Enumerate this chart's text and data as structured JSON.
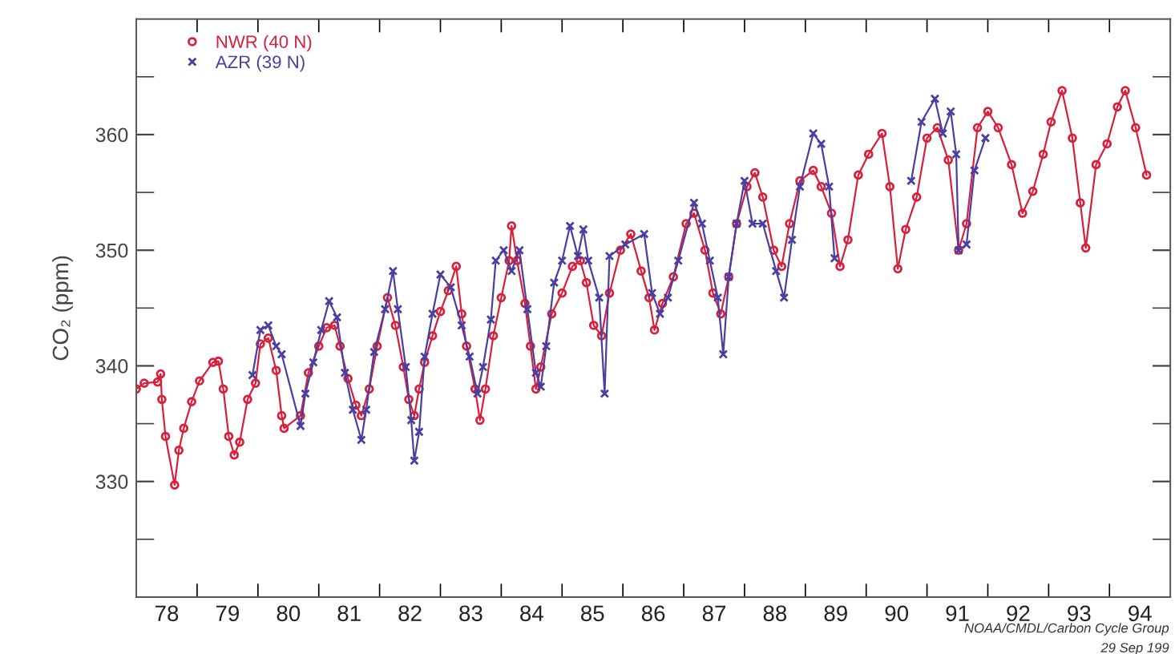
{
  "chart_data": {
    "type": "line",
    "ylabel": "CO₂ (ppm)",
    "xlim": [
      77.5,
      94.5
    ],
    "ylim": [
      320,
      370
    ],
    "xticks": [
      78,
      79,
      80,
      81,
      82,
      83,
      84,
      85,
      86,
      87,
      88,
      89,
      90,
      91,
      92,
      93,
      94,
      {
        "value": 78.5,
        "label": null
      },
      {
        "value": 79.5,
        "label": null
      },
      {
        "value": 80.5,
        "label": null
      },
      {
        "value": 81.5,
        "label": null
      },
      {
        "value": 82.5,
        "label": null
      },
      {
        "value": 83.5,
        "label": null
      },
      {
        "value": 84.5,
        "label": null
      },
      {
        "value": 85.5,
        "label": null
      },
      {
        "value": 86.5,
        "label": null
      },
      {
        "value": 87.5,
        "label": null
      },
      {
        "value": 88.5,
        "label": null
      },
      {
        "value": 89.5,
        "label": null
      },
      {
        "value": 90.5,
        "label": null
      },
      {
        "value": 91.5,
        "label": null
      },
      {
        "value": 92.5,
        "label": null
      },
      {
        "value": 93.5,
        "label": null
      }
    ],
    "yticks": [
      {
        "value": 325,
        "label": null
      },
      330,
      {
        "value": 335,
        "label": null
      },
      340,
      {
        "value": 345,
        "label": null
      },
      350,
      {
        "value": 355,
        "label": null
      },
      360,
      {
        "value": 365,
        "label": null
      }
    ],
    "grid": false,
    "legend": "top left",
    "line_style": "solid",
    "annotations": [
      "NOAA/CMDL/Carbon Cycle Group",
      "29 Sep 199"
    ],
    "series": [
      {
        "name": "NWR (40 N)",
        "color": "#d6203c",
        "marker": "circle",
        "x": [
          77.5,
          77.63,
          77.85,
          77.9,
          77.92,
          77.98,
          78.13,
          78.2,
          78.28,
          78.41,
          78.54,
          78.76,
          78.85,
          78.93,
          79.02,
          79.11,
          79.2,
          79.33,
          79.46,
          79.54,
          79.67,
          79.8,
          79.89,
          79.93,
          80.2,
          80.33,
          80.5,
          80.63,
          80.76,
          80.85,
          80.98,
          81.11,
          81.2,
          81.33,
          81.46,
          81.63,
          81.76,
          81.89,
          81.98,
          82.07,
          82.15,
          82.24,
          82.37,
          82.5,
          82.63,
          82.76,
          82.85,
          82.93,
          83.07,
          83.15,
          83.24,
          83.37,
          83.5,
          83.63,
          83.67,
          83.76,
          83.89,
          83.98,
          84.07,
          84.15,
          84.33,
          84.5,
          84.67,
          84.8,
          84.9,
          85.02,
          85.15,
          85.28,
          85.46,
          85.63,
          85.8,
          85.93,
          86.02,
          86.15,
          86.33,
          86.54,
          86.67,
          86.85,
          86.98,
          87.11,
          87.24,
          87.37,
          87.54,
          87.67,
          87.8,
          87.98,
          88.11,
          88.24,
          88.41,
          88.63,
          88.76,
          88.93,
          89.07,
          89.2,
          89.37,
          89.54,
          89.76,
          89.89,
          90.02,
          90.15,
          90.33,
          90.5,
          90.67,
          90.85,
          91.02,
          91.15,
          91.33,
          91.5,
          91.67,
          91.89,
          92.07,
          92.24,
          92.41,
          92.54,
          92.72,
          92.89,
          93.02,
          93.11,
          93.28,
          93.46,
          93.63,
          93.76,
          93.93,
          94.11
        ],
        "values": [
          338.0,
          338.5,
          338.6,
          339.3,
          337.1,
          333.9,
          329.7,
          332.7,
          334.6,
          336.9,
          338.7,
          340.3,
          340.4,
          338.0,
          333.9,
          332.3,
          333.4,
          337.1,
          338.5,
          341.9,
          342.4,
          339.6,
          335.7,
          334.6,
          335.7,
          339.4,
          341.7,
          343.3,
          343.5,
          341.7,
          338.9,
          336.6,
          335.7,
          338.0,
          341.7,
          345.9,
          343.5,
          339.9,
          337.1,
          335.7,
          338.0,
          340.3,
          342.6,
          344.7,
          346.5,
          348.6,
          344.5,
          341.7,
          338.0,
          335.3,
          338.0,
          342.6,
          345.9,
          349.1,
          352.1,
          349.1,
          345.4,
          341.7,
          338.0,
          339.9,
          344.5,
          346.3,
          348.6,
          349.1,
          347.2,
          343.5,
          342.6,
          346.3,
          350.0,
          351.4,
          348.2,
          345.9,
          343.1,
          345.4,
          347.7,
          352.3,
          353.2,
          350.0,
          346.3,
          344.5,
          347.7,
          352.3,
          355.5,
          356.7,
          354.6,
          350.0,
          348.6,
          352.3,
          356.0,
          356.9,
          355.5,
          353.2,
          348.6,
          350.9,
          356.5,
          358.3,
          360.1,
          355.5,
          348.4,
          351.8,
          354.6,
          359.7,
          360.6,
          357.8,
          350.0,
          352.3,
          360.6,
          362.0,
          360.6,
          357.4,
          353.2,
          355.1,
          358.3,
          361.1,
          363.8,
          359.7,
          354.1,
          350.2,
          357.4,
          359.2,
          362.4,
          363.8,
          360.6,
          356.5
        ]
      },
      {
        "name": "AZR (39 N)",
        "color": "#4a3fa0",
        "marker": "cross",
        "x": [
          79.41,
          79.54,
          79.67,
          79.8,
          79.89,
          80.2,
          80.28,
          80.41,
          80.54,
          80.67,
          80.8,
          80.93,
          81.06,
          81.2,
          81.28,
          81.41,
          81.59,
          81.72,
          81.8,
          81.93,
          82.02,
          82.07,
          82.15,
          82.24,
          82.37,
          82.5,
          82.67,
          82.85,
          82.98,
          83.11,
          83.2,
          83.33,
          83.41,
          83.54,
          83.67,
          83.8,
          83.93,
          84.07,
          84.15,
          84.24,
          84.37,
          84.5,
          84.63,
          84.76,
          84.85,
          84.93,
          85.11,
          85.2,
          85.28,
          85.54,
          85.85,
          85.98,
          86.11,
          86.24,
          86.41,
          86.67,
          86.8,
          86.93,
          87.06,
          87.15,
          87.24,
          87.37,
          87.5,
          87.63,
          87.8,
          88.02,
          88.15,
          88.28,
          88.41,
          88.63,
          88.76,
          88.89,
          88.98,
          89.6,
          90.24,
          90.41,
          90.63,
          90.76,
          90.89,
          90.98,
          91.02,
          91.15,
          91.28,
          91.46
        ],
        "values": [
          339.2,
          343.1,
          343.5,
          341.7,
          341.0,
          334.8,
          337.6,
          340.3,
          343.1,
          345.6,
          344.2,
          339.4,
          336.2,
          333.6,
          336.2,
          341.2,
          344.9,
          348.2,
          344.9,
          339.9,
          335.3,
          331.8,
          334.3,
          340.8,
          344.5,
          347.9,
          346.8,
          343.5,
          340.8,
          337.6,
          339.9,
          344.0,
          349.1,
          350.0,
          348.2,
          350.0,
          344.9,
          339.4,
          338.2,
          341.7,
          347.2,
          349.1,
          352.1,
          349.5,
          351.8,
          349.1,
          345.9,
          337.6,
          349.5,
          350.5,
          351.4,
          346.3,
          344.5,
          345.9,
          349.1,
          354.1,
          352.3,
          349.1,
          345.9,
          341.0,
          347.7,
          352.3,
          356.0,
          352.3,
          352.3,
          348.2,
          345.9,
          350.9,
          355.5,
          360.1,
          359.2,
          355.5,
          349.3,
          null,
          356.0,
          361.1,
          363.1,
          360.1,
          362.0,
          358.3,
          350.0,
          350.5,
          356.9,
          359.7
        ]
      }
    ]
  }
}
